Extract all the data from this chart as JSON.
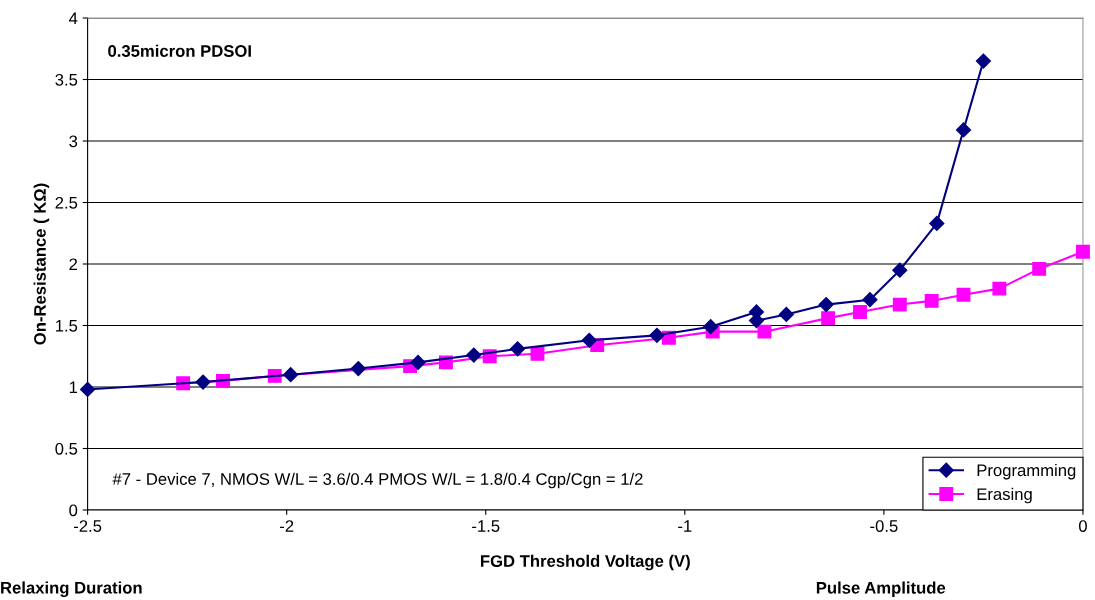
{
  "chart_data": {
    "type": "line",
    "xlabel": "FGD Threshold Voltage (V)",
    "ylabel": "On-Resistance ( KΩ)",
    "xlim": [
      -2.5,
      0
    ],
    "xticks": [
      -2.5,
      -2,
      -1.5,
      -1,
      -0.5,
      0
    ],
    "ylim": [
      0,
      4
    ],
    "yticks": [
      0,
      0.5,
      1,
      1.5,
      2,
      2.5,
      3,
      3.5,
      4
    ],
    "grid": "y",
    "legend": "bottom right",
    "line_style": "solid",
    "annotations": [
      "0.35micron PDSOI",
      "#7 - Device 7, NMOS W/L = 3.6/0.4 PMOS W/L = 1.8/0.4 Cgp/Cgn = 1/2",
      "Relaxing Duration",
      "Pulse Amplitude"
    ],
    "series": [
      {
        "name": "Programming",
        "color": "#000080",
        "marker": "diamond",
        "x": [
          -2.5,
          -2.21,
          -1.99,
          -1.82,
          -1.67,
          -1.53,
          -1.42,
          -1.24,
          -1.07,
          -0.935,
          -0.82,
          -0.82,
          -0.745,
          -0.645,
          -0.535,
          -0.46,
          -0.367,
          -0.3,
          -0.25
        ],
        "values": [
          0.98,
          1.04,
          1.1,
          1.15,
          1.2,
          1.26,
          1.31,
          1.38,
          1.42,
          1.49,
          1.61,
          1.54,
          1.59,
          1.67,
          1.71,
          1.95,
          2.33,
          3.09,
          3.65
        ]
      },
      {
        "name": "Erasing",
        "color": "#ff00ff",
        "marker": "square",
        "x": [
          -2.26,
          -2.16,
          -2.03,
          -1.69,
          -1.6,
          -1.49,
          -1.37,
          -1.22,
          -1.04,
          -0.93,
          -0.8,
          -0.64,
          -0.56,
          -0.46,
          -0.38,
          -0.3,
          -0.21,
          -0.11,
          0
        ],
        "values": [
          1.03,
          1.05,
          1.09,
          1.17,
          1.2,
          1.25,
          1.27,
          1.34,
          1.4,
          1.45,
          1.45,
          1.56,
          1.61,
          1.67,
          1.7,
          1.75,
          1.8,
          1.96,
          2.1
        ]
      }
    ]
  }
}
